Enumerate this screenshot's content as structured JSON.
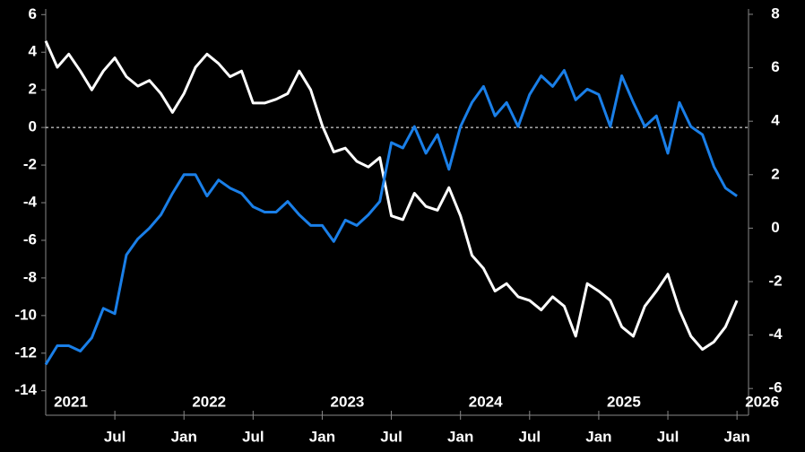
{
  "chart_data": {
    "type": "line",
    "x": [
      "2021-01",
      "2021-02",
      "2021-03",
      "2021-04",
      "2021-05",
      "2021-06",
      "2021-07",
      "2021-08",
      "2021-09",
      "2021-10",
      "2021-11",
      "2021-12",
      "2022-01",
      "2022-02",
      "2022-03",
      "2022-04",
      "2022-05",
      "2022-06",
      "2022-07",
      "2022-08",
      "2022-09",
      "2022-10",
      "2022-11",
      "2022-12",
      "2023-01",
      "2023-02",
      "2023-03",
      "2023-04",
      "2023-05",
      "2023-06",
      "2023-07",
      "2023-08",
      "2023-09",
      "2023-10",
      "2023-11",
      "2023-12",
      "2024-01",
      "2024-02",
      "2024-03",
      "2024-04",
      "2024-05",
      "2024-06",
      "2024-07",
      "2024-08",
      "2024-09",
      "2024-10",
      "2024-11",
      "2024-12",
      "2025-01",
      "2025-02",
      "2025-03",
      "2025-04",
      "2025-05",
      "2025-06",
      "2025-07",
      "2025-08",
      "2025-09",
      "2025-10",
      "2025-11",
      "2025-12",
      "2026-01"
    ],
    "series": [
      {
        "color": "#ffffff",
        "axis": "y",
        "values": [
          4.6,
          3.2,
          3.9,
          3.0,
          2.0,
          3.0,
          3.7,
          2.7,
          2.2,
          2.5,
          1.8,
          0.8,
          1.8,
          3.2,
          3.9,
          3.4,
          2.7,
          3.0,
          1.3,
          1.3,
          1.5,
          1.8,
          3.0,
          2.0,
          0.1,
          -1.3,
          -1.1,
          -1.8,
          -2.1,
          -1.6,
          -4.7,
          -4.9,
          -3.5,
          -4.2,
          -4.4,
          -3.2,
          -4.7,
          -6.8,
          -7.5,
          -8.7,
          -8.3,
          -9.0,
          -9.2,
          -9.7,
          -9.0,
          -9.5,
          -11.1,
          -8.3,
          -8.7,
          -9.2,
          -10.6,
          -11.1,
          -9.5,
          -8.7,
          -7.8,
          -9.7,
          -11.1,
          -11.8,
          -11.4,
          -10.6,
          -9.2
        ]
      },
      {
        "color": "#1a7fe8",
        "axis": "y2",
        "values": [
          -5.1,
          -4.4,
          -4.4,
          -4.6,
          -4.1,
          -3.0,
          -3.2,
          -1.0,
          -0.4,
          0.0,
          0.5,
          1.3,
          2.0,
          2.0,
          1.2,
          1.8,
          1.5,
          1.3,
          0.8,
          0.6,
          0.6,
          1.0,
          0.5,
          0.1,
          0.1,
          -0.5,
          0.3,
          0.1,
          0.5,
          1.0,
          3.2,
          3.0,
          3.8,
          2.8,
          3.5,
          2.2,
          3.8,
          4.7,
          5.3,
          4.2,
          4.7,
          3.8,
          5.0,
          5.7,
          5.3,
          5.9,
          4.8,
          5.2,
          5.0,
          3.8,
          5.7,
          4.7,
          3.8,
          4.2,
          2.8,
          4.7,
          3.8,
          3.5,
          2.3,
          1.5,
          1.2
        ]
      }
    ],
    "xlim": [
      "2021-01",
      "2026-02"
    ],
    "xticks": [
      {
        "value": "2021-07",
        "label": "Jul"
      },
      {
        "value": "2022-01",
        "label": "Jan"
      },
      {
        "value": "2022-07",
        "label": "Jul"
      },
      {
        "value": "2023-01",
        "label": "Jan"
      },
      {
        "value": "2023-07",
        "label": "Jul"
      },
      {
        "value": "2024-01",
        "label": "Jan"
      },
      {
        "value": "2024-07",
        "label": "Jul"
      },
      {
        "value": "2025-01",
        "label": "Jan"
      },
      {
        "value": "2025-07",
        "label": "Jul"
      },
      {
        "value": "2026-01",
        "label": "Jan"
      }
    ],
    "x_year_labels": [
      {
        "value": "2021-01",
        "label": "2021"
      },
      {
        "value": "2022-01",
        "label": "2022"
      },
      {
        "value": "2023-01",
        "label": "2023"
      },
      {
        "value": "2024-01",
        "label": "2024"
      },
      {
        "value": "2025-01",
        "label": "2025"
      },
      {
        "value": "2026-01",
        "label": "2026"
      }
    ],
    "ylim": [
      -15.3,
      6.3
    ],
    "yticks": [
      6,
      4,
      2,
      0,
      -2,
      -4,
      -6,
      -8,
      -10,
      -12,
      -14
    ],
    "y2lim": [
      -7,
      8.2
    ],
    "y2ticks": [
      8,
      6,
      4,
      2,
      0,
      -2,
      -4,
      -6
    ],
    "hline": 0
  }
}
